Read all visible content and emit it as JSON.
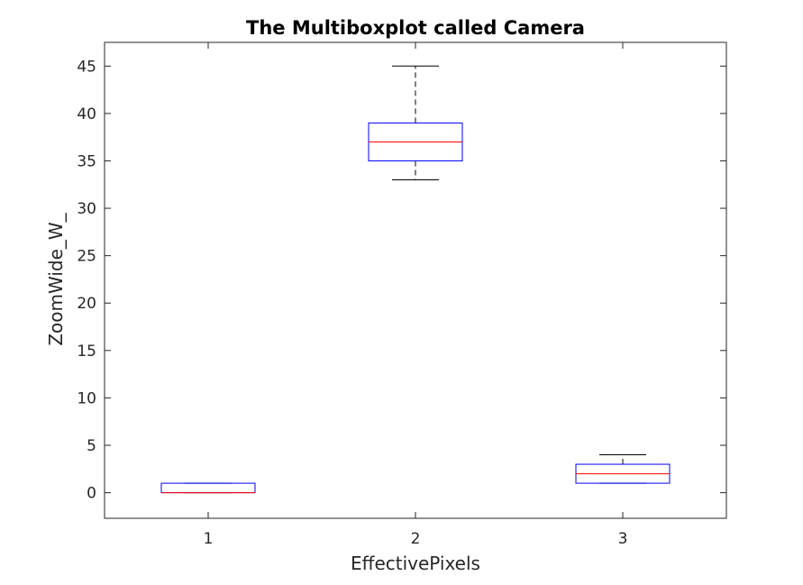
{
  "chart_data": {
    "type": "boxplot",
    "title": "The Multiboxplot called Camera",
    "xlabel": "EffectivePixels",
    "ylabel": "ZoomWide_W_",
    "categories": [
      "1",
      "2",
      "3"
    ],
    "xlim": [
      0.5,
      3.5
    ],
    "ylim": [
      -2.7,
      47.5
    ],
    "yticks": [
      0,
      5,
      10,
      15,
      20,
      25,
      30,
      35,
      40,
      45
    ],
    "grid": false,
    "colors": {
      "box": "#0000ff",
      "median": "#ff0000",
      "whisker": "#000000",
      "axis": "#262626"
    },
    "boxes": [
      {
        "category": "1",
        "whisker_low": 0,
        "q1": 0,
        "median": 0,
        "q3": 1,
        "whisker_high": 1
      },
      {
        "category": "2",
        "whisker_low": 33,
        "q1": 35,
        "median": 37,
        "q3": 39,
        "whisker_high": 45
      },
      {
        "category": "3",
        "whisker_low": 1,
        "q1": 1,
        "median": 2,
        "q3": 3,
        "whisker_high": 4
      }
    ]
  }
}
